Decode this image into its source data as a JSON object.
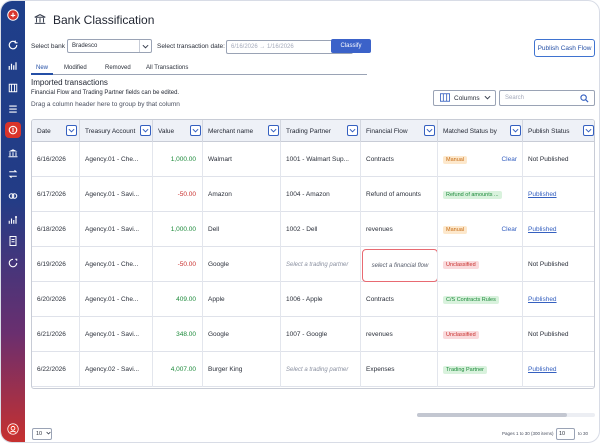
{
  "header": {
    "title": "Bank Classification"
  },
  "toolbar": {
    "select_bank_label": "Select bank",
    "bank_value": "Bradesco",
    "select_date_label": "Select transaction date:",
    "date_placeholder": "6/16/2026 → 1/16/2026",
    "classify_label": "Classify",
    "publish_label": "Publish Cash Flow"
  },
  "tabs": [
    {
      "label": "New",
      "active": true
    },
    {
      "label": "Modified",
      "active": false
    },
    {
      "label": "Removed",
      "active": false
    },
    {
      "label": "All Transactions",
      "active": false
    }
  ],
  "section": {
    "title": "Imported transactions",
    "note": "Financial Flow and Trading Partner fields can be edited.",
    "group_hint": "Drag a column header here to group by that column"
  },
  "grid_tools": {
    "columns_label": "Columns",
    "search_placeholder": "Search"
  },
  "columns": [
    "Date",
    "Treasury Account",
    "Value",
    "Merchant name",
    "Trading Partner",
    "Financial Flow",
    "Matched Status by",
    "Publish Status"
  ],
  "rows": [
    {
      "date": "6/16/2026",
      "account": "Agency.01 - Che...",
      "value": "1,000.00",
      "sign": "pos",
      "merchant": "Walmart",
      "partner": "1001 - Walmart Sup...",
      "partner_placeholder": false,
      "flow": "Contracts",
      "flow_edit": false,
      "status": "Manual",
      "status_type": "manual",
      "clear": "Clear",
      "publish": "Not Published",
      "published_link": false
    },
    {
      "date": "6/17/2026",
      "account": "Agency.01 - Savi...",
      "value": "-50.00",
      "sign": "neg",
      "merchant": "Amazon",
      "partner": "1004 - Amazon",
      "partner_placeholder": false,
      "flow": "Refund of amounts",
      "flow_edit": false,
      "status": "Refund of amounts ...",
      "status_type": "refund",
      "clear": "",
      "publish": "Published",
      "published_link": true
    },
    {
      "date": "6/18/2026",
      "account": "Agency.01 - Savi...",
      "value": "1,000.00",
      "sign": "pos",
      "merchant": "Dell",
      "partner": "1002 - Dell",
      "partner_placeholder": false,
      "flow": "revenues",
      "flow_edit": false,
      "status": "Manual",
      "status_type": "manual",
      "clear": "Clear",
      "publish": "Published",
      "published_link": true
    },
    {
      "date": "6/19/2026",
      "account": "Agency.01 - Che...",
      "value": "-50.00",
      "sign": "neg",
      "merchant": "Google",
      "partner": "Select a trading partner",
      "partner_placeholder": true,
      "flow": "select a financial flow",
      "flow_edit": true,
      "status": "Unclassified",
      "status_type": "uncl",
      "clear": "",
      "publish": "Not Published",
      "published_link": false
    },
    {
      "date": "6/20/2026",
      "account": "Agency.01 - Che...",
      "value": "409.00",
      "sign": "pos",
      "merchant": "Apple",
      "partner": "1006 - Apple",
      "partner_placeholder": false,
      "flow": "Contracts",
      "flow_edit": false,
      "status": "C/S Contracts Rules",
      "status_type": "cs",
      "clear": "",
      "publish": "Published",
      "published_link": true
    },
    {
      "date": "6/21/2026",
      "account": "Agency.01 - Savi...",
      "value": "348.00",
      "sign": "pos",
      "merchant": "Google",
      "partner": "1007 - Google",
      "partner_placeholder": false,
      "flow": "revenues",
      "flow_edit": false,
      "status": "Unclassified",
      "status_type": "uncl",
      "clear": "",
      "publish": "Not Published",
      "published_link": false
    },
    {
      "date": "6/22/2026",
      "account": "Agency.02 - Savi...",
      "value": "4,007.00",
      "sign": "pos",
      "merchant": "Burger King",
      "partner": "Select a trading partner",
      "partner_placeholder": true,
      "flow": "Expenses",
      "flow_edit": false,
      "status": "Trading Partner",
      "status_type": "tp",
      "clear": "",
      "publish": "Published",
      "published_link": true
    }
  ],
  "pager": {
    "page_size": "10",
    "info": "Pages 1 to 30 (300 items)",
    "page": "10",
    "of": "to 30"
  },
  "colors": {
    "accent": "#3b62c9",
    "positive": "#1c8a3a",
    "negative": "#c8302e",
    "sidebar_top": "#1e3f8a",
    "sidebar_bottom": "#c8302e"
  },
  "sidebar": {
    "icons": [
      "app-logo-icon",
      "refresh-icon",
      "chart-icon",
      "columns-icon",
      "list-icon",
      "classification-icon",
      "bank-icon",
      "transfer-icon",
      "link-icon",
      "report-icon",
      "checklist-icon",
      "spinner-icon",
      "user-badge-icon"
    ]
  }
}
